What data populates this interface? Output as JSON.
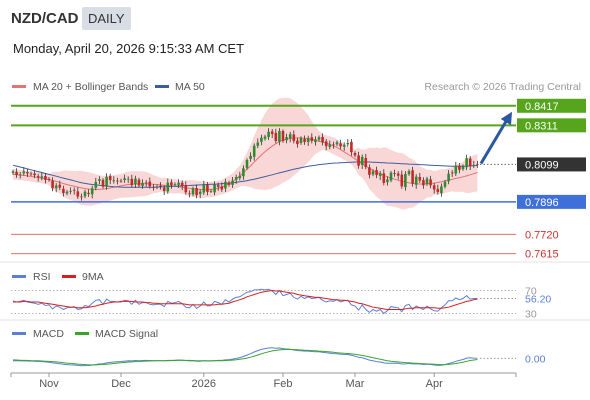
{
  "header": {
    "pair": "NZD/CAD",
    "period": "DAILY",
    "timestamp": "Monday, April 20, 2026 9:15:33 AM CET"
  },
  "colors": {
    "bull_candle": "#2e8b2e",
    "bear_candle": "#c62828",
    "bollinger_band": "#f7c9c9",
    "ma20": "#e57373",
    "ma50": "#3a5f9e",
    "resistance_line": "#56a51c",
    "support_line": "#3f6fd8",
    "target_line": "#e05858",
    "current_price": "#333333",
    "arrow": "#2b57a3",
    "rsi": "#5b7fd6",
    "rsi_ma": "#d62020",
    "macd": "#5b7fd6",
    "macd_signal": "#3aa52a"
  },
  "chart_data": [
    {
      "type": "candlestick",
      "title": "",
      "legend": [
        {
          "name": "MA 20 + Bollinger Bands",
          "color": "#e57373"
        },
        {
          "name": "MA 50",
          "color": "#3a5f9e"
        }
      ],
      "source": "Research © 2026 Trading Central",
      "ylim": [
        0.757,
        0.847
      ],
      "x_ticks": [
        "Nov",
        "Dec",
        "2026",
        "Feb",
        "Mar",
        "Apr"
      ],
      "price_levels": [
        {
          "value": 0.8417,
          "label": "0.8417",
          "kind": "resistance"
        },
        {
          "value": 0.8311,
          "label": "0.8311",
          "kind": "resistance"
        },
        {
          "value": 0.8099,
          "label": "0.8099",
          "kind": "current"
        },
        {
          "value": 0.7896,
          "label": "0.7896",
          "kind": "support"
        },
        {
          "value": 0.772,
          "label": "0.7720",
          "kind": "target"
        },
        {
          "value": 0.7615,
          "label": "0.7615",
          "kind": "target"
        }
      ],
      "close": [
        0.8061,
        0.8042,
        0.8045,
        0.8062,
        0.805,
        0.8046,
        0.8041,
        0.8028,
        0.8034,
        0.8015,
        0.8015,
        0.797,
        0.7985,
        0.7973,
        0.7944,
        0.7951,
        0.7955,
        0.7957,
        0.7925,
        0.7922,
        0.7951,
        0.7939,
        0.797,
        0.8004,
        0.8019,
        0.7978,
        0.8032,
        0.8014,
        0.8013,
        0.8009,
        0.8009,
        0.8024,
        0.8021,
        0.7987,
        0.8022,
        0.7985,
        0.7999,
        0.8,
        0.7981,
        0.7976,
        0.798,
        0.7979,
        0.7955,
        0.8,
        0.7986,
        0.7992,
        0.8,
        0.7982,
        0.7948,
        0.7939,
        0.7969,
        0.7932,
        0.7951,
        0.7988,
        0.795,
        0.7954,
        0.7989,
        0.7978,
        0.7963,
        0.8005,
        0.7988,
        0.8012,
        0.8031,
        0.8037,
        0.8078,
        0.8123,
        0.8145,
        0.82,
        0.8218,
        0.8244,
        0.825,
        0.8276,
        0.8264,
        0.8226,
        0.828,
        0.8226,
        0.8247,
        0.8263,
        0.8226,
        0.8209,
        0.8241,
        0.8221,
        0.8242,
        0.8226,
        0.8235,
        0.8246,
        0.8218,
        0.8198,
        0.8207,
        0.8204,
        0.8219,
        0.8197,
        0.8206,
        0.8215,
        0.8165,
        0.8148,
        0.8092,
        0.814,
        0.8085,
        0.8043,
        0.8062,
        0.8041,
        0.8051,
        0.7999,
        0.8018,
        0.8054,
        0.8048,
        0.8038,
        0.798,
        0.8047,
        0.8063,
        0.7995,
        0.8033,
        0.8012,
        0.7986,
        0.8022,
        0.7986,
        0.7963,
        0.7949,
        0.798,
        0.8005,
        0.8049,
        0.8053,
        0.8091,
        0.807,
        0.809,
        0.8133,
        0.8091,
        0.8096,
        0.8099
      ],
      "ma20": [
        0.8045,
        0.8043,
        0.8041,
        0.804,
        0.8037,
        0.8034,
        0.8031,
        0.8028,
        0.8025,
        0.8021,
        0.8017,
        0.8012,
        0.8007,
        0.8001,
        0.7995,
        0.799,
        0.7985,
        0.7981,
        0.7976,
        0.7972,
        0.7968,
        0.7966,
        0.7964,
        0.7963,
        0.7964,
        0.7965,
        0.7968,
        0.7971,
        0.7975,
        0.7979,
        0.7983,
        0.7987,
        0.799,
        0.7992,
        0.7993,
        0.7994,
        0.7994,
        0.7994,
        0.7993,
        0.7992,
        0.799,
        0.7988,
        0.7986,
        0.7984,
        0.7982,
        0.798,
        0.7978,
        0.7976,
        0.7973,
        0.797,
        0.7968,
        0.7965,
        0.7963,
        0.7962,
        0.7962,
        0.7963,
        0.7966,
        0.797,
        0.7976,
        0.7984,
        0.7994,
        0.8006,
        0.802,
        0.8036,
        0.8054,
        0.8072,
        0.8091,
        0.8111,
        0.8131,
        0.815,
        0.8168,
        0.8184,
        0.8198,
        0.8211,
        0.8222,
        0.823,
        0.8236,
        0.824,
        0.8242,
        0.8243,
        0.8243,
        0.8241,
        0.8238,
        0.8234,
        0.823,
        0.8225,
        0.822,
        0.8215,
        0.8208,
        0.82,
        0.819,
        0.8179,
        0.8167,
        0.8155,
        0.8142,
        0.8129,
        0.8116,
        0.8103,
        0.809,
        0.8078,
        0.8067,
        0.8057,
        0.8048,
        0.804,
        0.8032,
        0.8025,
        0.8019,
        0.8013,
        0.8008,
        0.8003,
        0.7999,
        0.7996,
        0.7994,
        0.7993,
        0.7993,
        0.7994,
        0.7996,
        0.7998,
        0.8001,
        0.8005,
        0.8009,
        0.8014,
        0.8018,
        0.8023,
        0.8027,
        0.8032,
        0.8037,
        0.8043,
        0.8049,
        0.8055
      ],
      "ma50": [
        0.8095,
        0.809,
        0.8085,
        0.808,
        0.8075,
        0.807,
        0.8065,
        0.806,
        0.8055,
        0.805,
        0.8045,
        0.804,
        0.8035,
        0.803,
        0.8025,
        0.802,
        0.8015,
        0.801,
        0.8005,
        0.8,
        0.7996,
        0.7993,
        0.799,
        0.7988,
        0.7986,
        0.7984,
        0.7982,
        0.798,
        0.7978,
        0.7977,
        0.7976,
        0.7975,
        0.7975,
        0.7975,
        0.7975,
        0.7975,
        0.7975,
        0.7975,
        0.7975,
        0.7975,
        0.7976,
        0.7977,
        0.7978,
        0.7979,
        0.798,
        0.7981,
        0.7982,
        0.7983,
        0.7984,
        0.7985,
        0.7986,
        0.7987,
        0.7988,
        0.7989,
        0.799,
        0.7991,
        0.7992,
        0.7993,
        0.7994,
        0.7996,
        0.7998,
        0.8,
        0.8002,
        0.8005,
        0.8008,
        0.8011,
        0.8015,
        0.8019,
        0.8023,
        0.8028,
        0.8033,
        0.8038,
        0.8043,
        0.8048,
        0.8053,
        0.8058,
        0.8063,
        0.8068,
        0.8073,
        0.8077,
        0.8081,
        0.8085,
        0.8089,
        0.8092,
        0.8095,
        0.8098,
        0.81,
        0.8102,
        0.8104,
        0.8106,
        0.8107,
        0.8108,
        0.8109,
        0.811,
        0.8111,
        0.8112,
        0.8112,
        0.8112,
        0.8112,
        0.8112,
        0.8111,
        0.811,
        0.8109,
        0.8108,
        0.8107,
        0.8106,
        0.8105,
        0.8104,
        0.8103,
        0.8102,
        0.8101,
        0.81,
        0.8099,
        0.8098,
        0.8097,
        0.8096,
        0.8095,
        0.8094,
        0.8093,
        0.8092,
        0.8091,
        0.809,
        0.8089,
        0.8089,
        0.8089,
        0.8089,
        0.809,
        0.8091,
        0.8092,
        0.8094
      ],
      "projection_arrow": {
        "from": 0.8099,
        "to": 0.8417
      }
    },
    {
      "type": "line",
      "title": "",
      "legend": [
        {
          "name": "RSI",
          "color": "#5b7fd6"
        },
        {
          "name": "9MA",
          "color": "#d62020"
        }
      ],
      "ylim": [
        24,
        76
      ],
      "levels": [
        70,
        30
      ],
      "level_labels": [
        "70",
        "30"
      ],
      "current_value": 56.2,
      "current_label": "56.20",
      "rsi": [
        52,
        50,
        51,
        53,
        50,
        49,
        48,
        46,
        48,
        44,
        45,
        38,
        43,
        41,
        37,
        40,
        41,
        42,
        37,
        38,
        44,
        42,
        48,
        53,
        54,
        46,
        55,
        51,
        51,
        50,
        50,
        53,
        52,
        46,
        53,
        46,
        49,
        49,
        46,
        45,
        46,
        46,
        42,
        51,
        48,
        49,
        51,
        47,
        41,
        40,
        46,
        39,
        43,
        50,
        43,
        44,
        51,
        49,
        46,
        54,
        50,
        55,
        58,
        59,
        63,
        67,
        68,
        71,
        71,
        72,
        71,
        72,
        69,
        63,
        70,
        61,
        63,
        65,
        58,
        55,
        60,
        56,
        59,
        56,
        57,
        58,
        53,
        50,
        52,
        51,
        54,
        50,
        52,
        53,
        45,
        43,
        36,
        45,
        37,
        32,
        37,
        34,
        37,
        30,
        35,
        42,
        41,
        40,
        33,
        44,
        46,
        37,
        43,
        40,
        37,
        43,
        38,
        35,
        34,
        40,
        45,
        52,
        52,
        57,
        54,
        56,
        61,
        55,
        56,
        56.2
      ],
      "ma9": [
        50,
        50,
        50,
        51,
        51,
        50,
        50,
        50,
        49,
        48,
        47,
        46,
        45,
        44,
        43,
        42,
        41,
        41,
        40,
        40,
        40,
        41,
        42,
        43,
        45,
        46,
        48,
        49,
        50,
        50,
        51,
        51,
        51,
        51,
        50,
        50,
        50,
        49,
        49,
        48,
        48,
        47,
        47,
        47,
        47,
        47,
        47,
        47,
        46,
        45,
        45,
        45,
        45,
        45,
        45,
        45,
        45,
        46,
        46,
        47,
        48,
        50,
        52,
        54,
        56,
        59,
        61,
        63,
        65,
        67,
        68,
        69,
        70,
        69,
        69,
        68,
        67,
        66,
        65,
        63,
        62,
        61,
        60,
        59,
        58,
        58,
        57,
        56,
        55,
        54,
        54,
        53,
        53,
        52,
        51,
        50,
        48,
        47,
        45,
        43,
        41,
        40,
        39,
        38,
        37,
        37,
        37,
        37,
        37,
        38,
        39,
        39,
        40,
        40,
        40,
        40,
        40,
        40,
        39,
        39,
        40,
        41,
        43,
        45,
        47,
        49,
        51,
        52,
        54,
        55
      ]
    },
    {
      "type": "line",
      "title": "",
      "legend": [
        {
          "name": "MACD",
          "color": "#5b7fd6"
        },
        {
          "name": "MACD Signal",
          "color": "#3aa52a"
        }
      ],
      "ylim": [
        -1.6,
        1.8
      ],
      "current_value": 0.0,
      "current_label": "0.00",
      "macd": [
        -0.3,
        -0.32,
        -0.33,
        -0.33,
        -0.34,
        -0.35,
        -0.37,
        -0.4,
        -0.42,
        -0.46,
        -0.5,
        -0.58,
        -0.63,
        -0.68,
        -0.75,
        -0.8,
        -0.83,
        -0.85,
        -0.9,
        -0.93,
        -0.92,
        -0.91,
        -0.86,
        -0.78,
        -0.7,
        -0.68,
        -0.58,
        -0.52,
        -0.47,
        -0.43,
        -0.4,
        -0.35,
        -0.32,
        -0.33,
        -0.28,
        -0.3,
        -0.28,
        -0.27,
        -0.28,
        -0.29,
        -0.29,
        -0.29,
        -0.32,
        -0.27,
        -0.26,
        -0.24,
        -0.22,
        -0.23,
        -0.28,
        -0.33,
        -0.32,
        -0.37,
        -0.37,
        -0.32,
        -0.34,
        -0.34,
        -0.29,
        -0.27,
        -0.27,
        -0.2,
        -0.17,
        -0.1,
        -0.01,
        0.09,
        0.22,
        0.4,
        0.58,
        0.79,
        0.97,
        1.12,
        1.22,
        1.3,
        1.32,
        1.27,
        1.3,
        1.22,
        1.17,
        1.14,
        1.05,
        0.97,
        0.95,
        0.91,
        0.9,
        0.86,
        0.83,
        0.82,
        0.76,
        0.69,
        0.64,
        0.59,
        0.57,
        0.52,
        0.49,
        0.48,
        0.38,
        0.28,
        0.13,
        0.06,
        -0.07,
        -0.23,
        -0.32,
        -0.42,
        -0.47,
        -0.58,
        -0.63,
        -0.62,
        -0.61,
        -0.62,
        -0.72,
        -0.7,
        -0.65,
        -0.71,
        -0.7,
        -0.72,
        -0.78,
        -0.75,
        -0.78,
        -0.84,
        -0.9,
        -0.87,
        -0.8,
        -0.66,
        -0.54,
        -0.38,
        -0.27,
        -0.15,
        0.02,
        0.06,
        0.03,
        0.0
      ],
      "signal": [
        -0.2,
        -0.22,
        -0.24,
        -0.26,
        -0.27,
        -0.29,
        -0.3,
        -0.32,
        -0.34,
        -0.36,
        -0.39,
        -0.42,
        -0.46,
        -0.5,
        -0.55,
        -0.6,
        -0.64,
        -0.68,
        -0.73,
        -0.77,
        -0.8,
        -0.83,
        -0.83,
        -0.83,
        -0.8,
        -0.78,
        -0.74,
        -0.7,
        -0.65,
        -0.61,
        -0.57,
        -0.52,
        -0.48,
        -0.45,
        -0.42,
        -0.4,
        -0.37,
        -0.35,
        -0.34,
        -0.33,
        -0.32,
        -0.31,
        -0.31,
        -0.3,
        -0.29,
        -0.28,
        -0.27,
        -0.26,
        -0.26,
        -0.27,
        -0.28,
        -0.3,
        -0.31,
        -0.31,
        -0.32,
        -0.32,
        -0.32,
        -0.31,
        -0.3,
        -0.28,
        -0.26,
        -0.23,
        -0.19,
        -0.13,
        -0.06,
        0.03,
        0.14,
        0.27,
        0.41,
        0.56,
        0.7,
        0.82,
        0.93,
        1.0,
        1.06,
        1.09,
        1.11,
        1.11,
        1.1,
        1.07,
        1.05,
        1.02,
        1.0,
        0.97,
        0.94,
        0.91,
        0.88,
        0.84,
        0.8,
        0.75,
        0.71,
        0.67,
        0.63,
        0.6,
        0.55,
        0.5,
        0.43,
        0.35,
        0.27,
        0.17,
        0.07,
        -0.03,
        -0.12,
        -0.22,
        -0.3,
        -0.36,
        -0.41,
        -0.45,
        -0.5,
        -0.54,
        -0.57,
        -0.6,
        -0.62,
        -0.65,
        -0.68,
        -0.7,
        -0.72,
        -0.74,
        -0.77,
        -0.79,
        -0.79,
        -0.77,
        -0.72,
        -0.66,
        -0.58,
        -0.49,
        -0.38,
        -0.28,
        -0.21,
        -0.15
      ]
    }
  ]
}
